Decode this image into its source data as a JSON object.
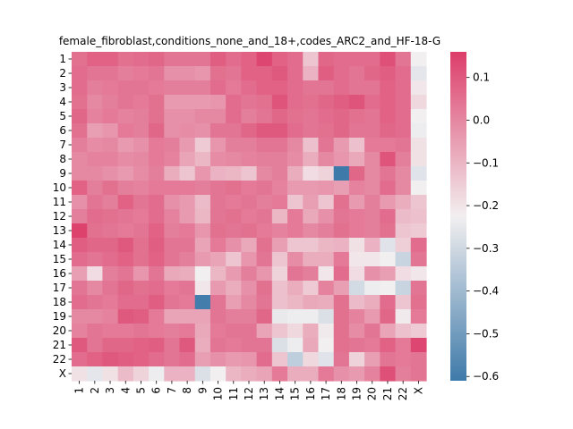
{
  "chart_data": {
    "type": "heatmap",
    "title": "female_fibroblast,conditions_none_and_18+,codes_ARC2_and_HF-18-G",
    "xlabel": "",
    "ylabel": "",
    "x_categories": [
      "1",
      "2",
      "3",
      "4",
      "5",
      "6",
      "7",
      "8",
      "9",
      "10",
      "11",
      "12",
      "13",
      "14",
      "15",
      "16",
      "17",
      "18",
      "19",
      "20",
      "21",
      "22",
      "X"
    ],
    "y_categories": [
      "1",
      "2",
      "3",
      "4",
      "5",
      "6",
      "7",
      "8",
      "9",
      "10",
      "11",
      "12",
      "13",
      "14",
      "15",
      "16",
      "17",
      "18",
      "19",
      "20",
      "21",
      "22",
      "X"
    ],
    "colorbar": {
      "range": [
        -0.61,
        0.16
      ],
      "ticks": [
        0.1,
        0.0,
        -0.1,
        -0.2,
        -0.3,
        -0.4,
        -0.5,
        -0.6
      ],
      "tick_labels": [
        "0.1",
        "0.0",
        "−0.1",
        "−0.2",
        "−0.3",
        "−0.4",
        "−0.5",
        "−0.6"
      ],
      "colormap": "diverging blue-white-red",
      "colors": {
        "low": "#3e7aa9",
        "mid": "#f2eff0",
        "high": "#dc3d69"
      }
    },
    "values": [
      [
        0.05,
        0.08,
        0.08,
        0.05,
        0.06,
        0.07,
        0.04,
        0.04,
        0.04,
        0.09,
        0.06,
        0.08,
        0.14,
        0.08,
        0.06,
        -0.13,
        0.07,
        0.06,
        0.06,
        0.06,
        0.12,
        0.04,
        -0.22
      ],
      [
        0.06,
        0.04,
        0.04,
        0.02,
        0.03,
        0.04,
        -0.02,
        -0.02,
        -0.03,
        0.05,
        0.04,
        0.08,
        0.08,
        0.1,
        0.06,
        -0.09,
        0.09,
        0.06,
        0.04,
        0.07,
        0.09,
        0.06,
        -0.25
      ],
      [
        0.06,
        0.02,
        0.03,
        0.04,
        0.04,
        0.03,
        0.02,
        0.02,
        0.02,
        0.06,
        0.03,
        0.06,
        0.08,
        0.08,
        0.06,
        0.04,
        0.04,
        0.06,
        0.04,
        0.04,
        0.08,
        0.06,
        -0.2
      ],
      [
        0.05,
        0.0,
        0.02,
        0.04,
        0.03,
        0.05,
        -0.04,
        -0.04,
        -0.04,
        -0.03,
        0.06,
        0.04,
        0.05,
        0.11,
        0.06,
        0.05,
        0.07,
        0.09,
        0.11,
        0.06,
        0.08,
        0.06,
        -0.17
      ],
      [
        0.07,
        0.01,
        0.03,
        0.01,
        0.02,
        0.05,
        -0.02,
        -0.02,
        0.0,
        0.0,
        0.06,
        0.02,
        0.04,
        0.07,
        0.05,
        0.04,
        0.06,
        0.07,
        0.05,
        0.04,
        0.08,
        0.06,
        -0.22
      ],
      [
        0.05,
        -0.05,
        -0.03,
        0.03,
        0.02,
        0.07,
        -0.02,
        -0.01,
        -0.02,
        0.04,
        0.04,
        0.07,
        0.1,
        0.1,
        0.06,
        0.04,
        0.05,
        0.07,
        0.04,
        0.04,
        0.07,
        0.06,
        -0.23
      ],
      [
        0.02,
        -0.01,
        0.0,
        -0.04,
        -0.02,
        0.03,
        0.02,
        -0.04,
        -0.14,
        -0.03,
        0.02,
        0.02,
        0.04,
        0.04,
        0.0,
        -0.12,
        0.04,
        -0.04,
        -0.12,
        0.03,
        0.03,
        0.04,
        -0.19
      ],
      [
        0.0,
        0.01,
        0.01,
        -0.01,
        0.0,
        0.03,
        0.01,
        -0.06,
        -0.1,
        -0.01,
        0.0,
        0.01,
        0.02,
        0.02,
        -0.01,
        -0.08,
        0.0,
        -0.03,
        -0.07,
        0.0,
        0.11,
        0.02,
        -0.19
      ],
      [
        0.0,
        0.0,
        -0.02,
        -0.04,
        -0.01,
        0.02,
        -0.08,
        -0.13,
        -0.03,
        -0.09,
        -0.1,
        -0.13,
        0.0,
        0.02,
        -0.08,
        -0.18,
        -0.16,
        -0.61,
        0.07,
        0.0,
        0.04,
        0.0,
        -0.26
      ],
      [
        0.08,
        0.02,
        0.05,
        0.02,
        0.01,
        0.03,
        0.03,
        0.03,
        0.02,
        0.04,
        0.05,
        0.03,
        0.04,
        0.01,
        -0.04,
        -0.04,
        -0.03,
        -0.05,
        0.01,
        0.0,
        0.06,
        0.0,
        -0.22
      ],
      [
        -0.02,
        0.04,
        0.02,
        0.08,
        0.04,
        0.06,
        -0.02,
        -0.04,
        -0.11,
        0.04,
        0.03,
        0.04,
        0.02,
        0.03,
        -0.13,
        -0.05,
        -0.13,
        0.05,
        -0.04,
        0.02,
        -0.04,
        -0.08,
        -0.13
      ],
      [
        0.02,
        0.06,
        0.05,
        0.04,
        0.03,
        0.06,
        0.01,
        -0.04,
        -0.1,
        0.04,
        0.05,
        0.03,
        0.04,
        -0.1,
        0.03,
        -0.07,
        -0.02,
        0.04,
        0.03,
        0.02,
        0.06,
        -0.11,
        -0.12
      ],
      [
        0.15,
        0.05,
        0.04,
        0.03,
        0.04,
        0.08,
        0.02,
        0.03,
        -0.03,
        0.05,
        0.04,
        0.05,
        0.03,
        0.01,
        0.03,
        0.0,
        0.02,
        0.05,
        0.03,
        0.02,
        0.05,
        -0.13,
        -0.14
      ],
      [
        0.09,
        0.07,
        0.07,
        0.1,
        0.05,
        0.09,
        0.04,
        0.04,
        -0.06,
        0.03,
        -0.02,
        -0.07,
        0.05,
        -0.05,
        -0.13,
        -0.13,
        -0.1,
        -0.09,
        -0.19,
        -0.09,
        -0.26,
        -0.15,
        0.06
      ],
      [
        0.06,
        0.04,
        0.06,
        0.08,
        0.05,
        0.08,
        0.04,
        0.02,
        -0.04,
        -0.06,
        -0.13,
        -0.03,
        0.04,
        -0.13,
        -0.01,
        -0.08,
        -0.08,
        0.03,
        -0.2,
        -0.2,
        -0.22,
        -0.31,
        0.04
      ],
      [
        -0.05,
        -0.18,
        0.02,
        0.04,
        -0.03,
        0.04,
        -0.07,
        -0.08,
        -0.22,
        -0.1,
        -0.04,
        0.02,
        -0.03,
        -0.16,
        0.04,
        0.02,
        -0.2,
        0.06,
        -0.18,
        -0.02,
        -0.05,
        -0.18,
        -0.2
      ],
      [
        0.04,
        0.0,
        0.04,
        0.07,
        0.05,
        0.06,
        0.03,
        0.04,
        -0.2,
        -0.04,
        -0.08,
        -0.02,
        0.05,
        -0.12,
        -0.08,
        -0.14,
        0.01,
        -0.05,
        -0.29,
        -0.23,
        -0.22,
        -0.31,
        0.04
      ],
      [
        0.06,
        0.04,
        0.03,
        0.06,
        0.06,
        0.09,
        0.04,
        0.03,
        -0.6,
        0.04,
        -0.05,
        0.0,
        0.04,
        -0.12,
        -0.1,
        -0.07,
        -0.08,
        0.05,
        -0.11,
        -0.08,
        0.06,
        -0.13,
        0.05
      ],
      [
        0.0,
        0.0,
        0.01,
        0.1,
        0.09,
        0.03,
        -0.06,
        -0.06,
        -0.06,
        0.04,
        0.02,
        0.02,
        0.07,
        -0.24,
        -0.23,
        -0.23,
        -0.27,
        0.05,
        0.01,
        -0.04,
        0.07,
        -0.21,
        0.03
      ],
      [
        0.01,
        0.04,
        0.03,
        0.03,
        0.04,
        0.03,
        0.02,
        0.03,
        -0.07,
        0.03,
        0.04,
        0.04,
        -0.06,
        -0.13,
        -0.17,
        -0.08,
        -0.21,
        0.05,
        -0.01,
        0.04,
        -0.06,
        -0.12,
        -0.14
      ],
      [
        0.1,
        0.04,
        0.07,
        0.07,
        0.08,
        0.09,
        0.04,
        0.1,
        -0.08,
        0.04,
        0.03,
        0.04,
        0.04,
        -0.27,
        -0.23,
        -0.07,
        -0.22,
        0.05,
        0.04,
        0.03,
        0.08,
        0.03,
        0.14
      ],
      [
        0.06,
        0.08,
        0.1,
        0.09,
        0.08,
        0.06,
        0.04,
        0.06,
        -0.05,
        -0.02,
        -0.04,
        -0.03,
        0.06,
        -0.13,
        -0.33,
        -0.17,
        -0.26,
        0.04,
        -0.16,
        -0.05,
        0.04,
        0.03,
        0.04
      ],
      [
        -0.19,
        -0.25,
        -0.19,
        -0.11,
        -0.16,
        -0.23,
        -0.09,
        -0.09,
        -0.27,
        -0.22,
        -0.1,
        -0.08,
        -0.06,
        0.03,
        -0.08,
        -0.08,
        0.03,
        -0.02,
        -0.04,
        0.01,
        0.12,
        0.02,
        0.04
      ]
    ]
  }
}
